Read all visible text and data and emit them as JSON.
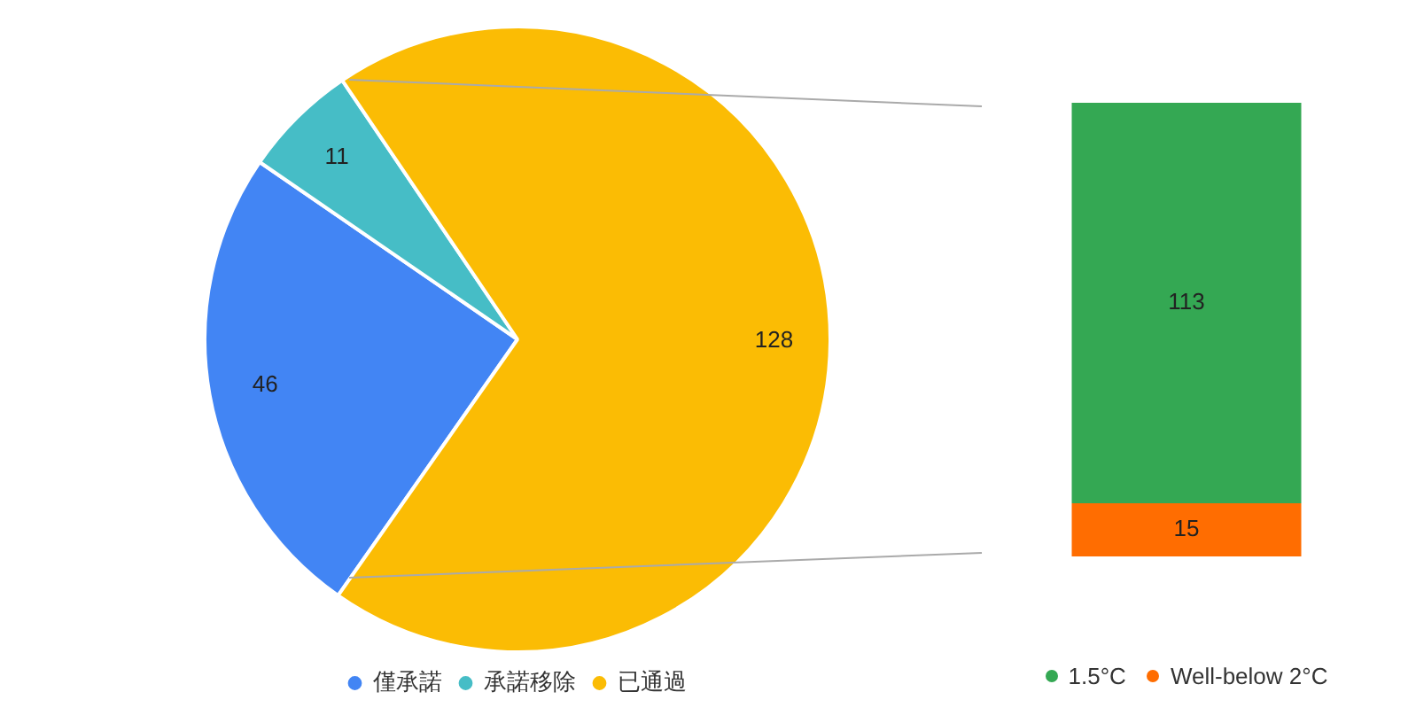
{
  "chart_data": [
    {
      "type": "pie",
      "categories": [
        "僅承諾",
        "承諾移除",
        "已通過"
      ],
      "values": [
        46,
        11,
        128
      ],
      "colors": [
        "#4285f4",
        "#46bdc6",
        "#fbbc04"
      ],
      "data_labels": true,
      "legend": "bottom"
    },
    {
      "type": "bar",
      "stacked": true,
      "categories": [
        null
      ],
      "series": [
        {
          "name": "Well-below 2°C",
          "color": "#ff6d01",
          "values": [
            15
          ]
        },
        {
          "name": "1.5°C",
          "color": "#34a853",
          "values": [
            113
          ]
        }
      ],
      "data_labels": true,
      "legend": "bottom"
    }
  ]
}
